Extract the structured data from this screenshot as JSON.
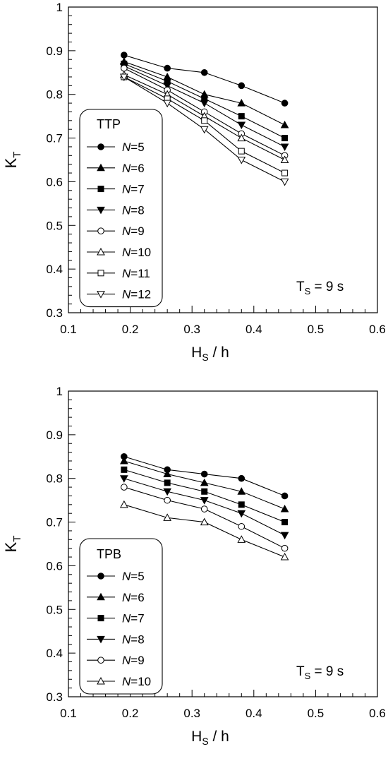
{
  "chart_data": [
    {
      "type": "line",
      "xlabel": "H",
      "xlabel_sub": "S",
      "xlabel_suffix": " / h",
      "ylabel": "K",
      "ylabel_sub": "T",
      "xlim": [
        0.1,
        0.6
      ],
      "ylim": [
        0.3,
        1.0
      ],
      "xticks": [
        "0.1",
        "0.2",
        "0.3",
        "0.4",
        "0.5",
        "0.6"
      ],
      "yticks": [
        "0.3",
        "0.4",
        "0.5",
        "0.6",
        "0.7",
        "0.8",
        "0.9",
        "1"
      ],
      "grid": false,
      "legend_title": "TTP",
      "legend_position": "bottom-left",
      "annotation": {
        "prefix": "T",
        "sub": "S",
        "suffix": " = 9 s",
        "position": "bottom-right"
      },
      "x": [
        0.19,
        0.26,
        0.32,
        0.38,
        0.45
      ],
      "series": [
        {
          "label_var": "N",
          "label_val": "=5",
          "marker": "circle",
          "filled": true,
          "values": [
            0.89,
            0.86,
            0.85,
            0.82,
            0.78
          ]
        },
        {
          "label_var": "N",
          "label_val": "=6",
          "marker": "triangle-up",
          "filled": true,
          "values": [
            0.875,
            0.84,
            0.8,
            0.78,
            0.73
          ]
        },
        {
          "label_var": "N",
          "label_val": "=7",
          "marker": "square",
          "filled": true,
          "values": [
            0.87,
            0.83,
            0.79,
            0.75,
            0.7
          ]
        },
        {
          "label_var": "N",
          "label_val": "=8",
          "marker": "triangle-down",
          "filled": true,
          "values": [
            0.865,
            0.82,
            0.78,
            0.73,
            0.68
          ]
        },
        {
          "label_var": "N",
          "label_val": "=9",
          "marker": "circle",
          "filled": false,
          "values": [
            0.86,
            0.81,
            0.76,
            0.71,
            0.66
          ]
        },
        {
          "label_var": "N",
          "label_val": "=10",
          "marker": "triangle-up",
          "filled": false,
          "values": [
            0.845,
            0.8,
            0.75,
            0.7,
            0.65
          ]
        },
        {
          "label_var": "N",
          "label_val": "=11",
          "marker": "square",
          "filled": false,
          "values": [
            0.84,
            0.79,
            0.74,
            0.67,
            0.62
          ]
        },
        {
          "label_var": "N",
          "label_val": "=12",
          "marker": "triangle-down",
          "filled": false,
          "values": [
            0.84,
            0.78,
            0.72,
            0.65,
            0.6
          ]
        }
      ]
    },
    {
      "type": "line",
      "xlabel": "H",
      "xlabel_sub": "S",
      "xlabel_suffix": " / h",
      "ylabel": "K",
      "ylabel_sub": "T",
      "xlim": [
        0.1,
        0.6
      ],
      "ylim": [
        0.3,
        1.0
      ],
      "xticks": [
        "0.1",
        "0.2",
        "0.3",
        "0.4",
        "0.5",
        "0.6"
      ],
      "yticks": [
        "0.3",
        "0.4",
        "0.5",
        "0.6",
        "0.7",
        "0.8",
        "0.9",
        "1"
      ],
      "grid": false,
      "legend_title": "TPB",
      "legend_position": "bottom-left",
      "annotation": {
        "prefix": "T",
        "sub": "S",
        "suffix": " = 9 s",
        "position": "bottom-right"
      },
      "x": [
        0.19,
        0.26,
        0.32,
        0.38,
        0.45
      ],
      "series": [
        {
          "label_var": "N",
          "label_val": "=5",
          "marker": "circle",
          "filled": true,
          "values": [
            0.85,
            0.82,
            0.81,
            0.8,
            0.76
          ]
        },
        {
          "label_var": "N",
          "label_val": "=6",
          "marker": "triangle-up",
          "filled": true,
          "values": [
            0.84,
            0.81,
            0.79,
            0.77,
            0.73
          ]
        },
        {
          "label_var": "N",
          "label_val": "=7",
          "marker": "square",
          "filled": true,
          "values": [
            0.82,
            0.79,
            0.77,
            0.74,
            0.7
          ]
        },
        {
          "label_var": "N",
          "label_val": "=8",
          "marker": "triangle-down",
          "filled": true,
          "values": [
            0.8,
            0.77,
            0.75,
            0.72,
            0.67
          ]
        },
        {
          "label_var": "N",
          "label_val": "=9",
          "marker": "circle",
          "filled": false,
          "values": [
            0.78,
            0.75,
            0.73,
            0.69,
            0.64
          ]
        },
        {
          "label_var": "N",
          "label_val": "=10",
          "marker": "triangle-up",
          "filled": false,
          "values": [
            0.74,
            0.71,
            0.7,
            0.66,
            0.62
          ]
        }
      ]
    }
  ]
}
